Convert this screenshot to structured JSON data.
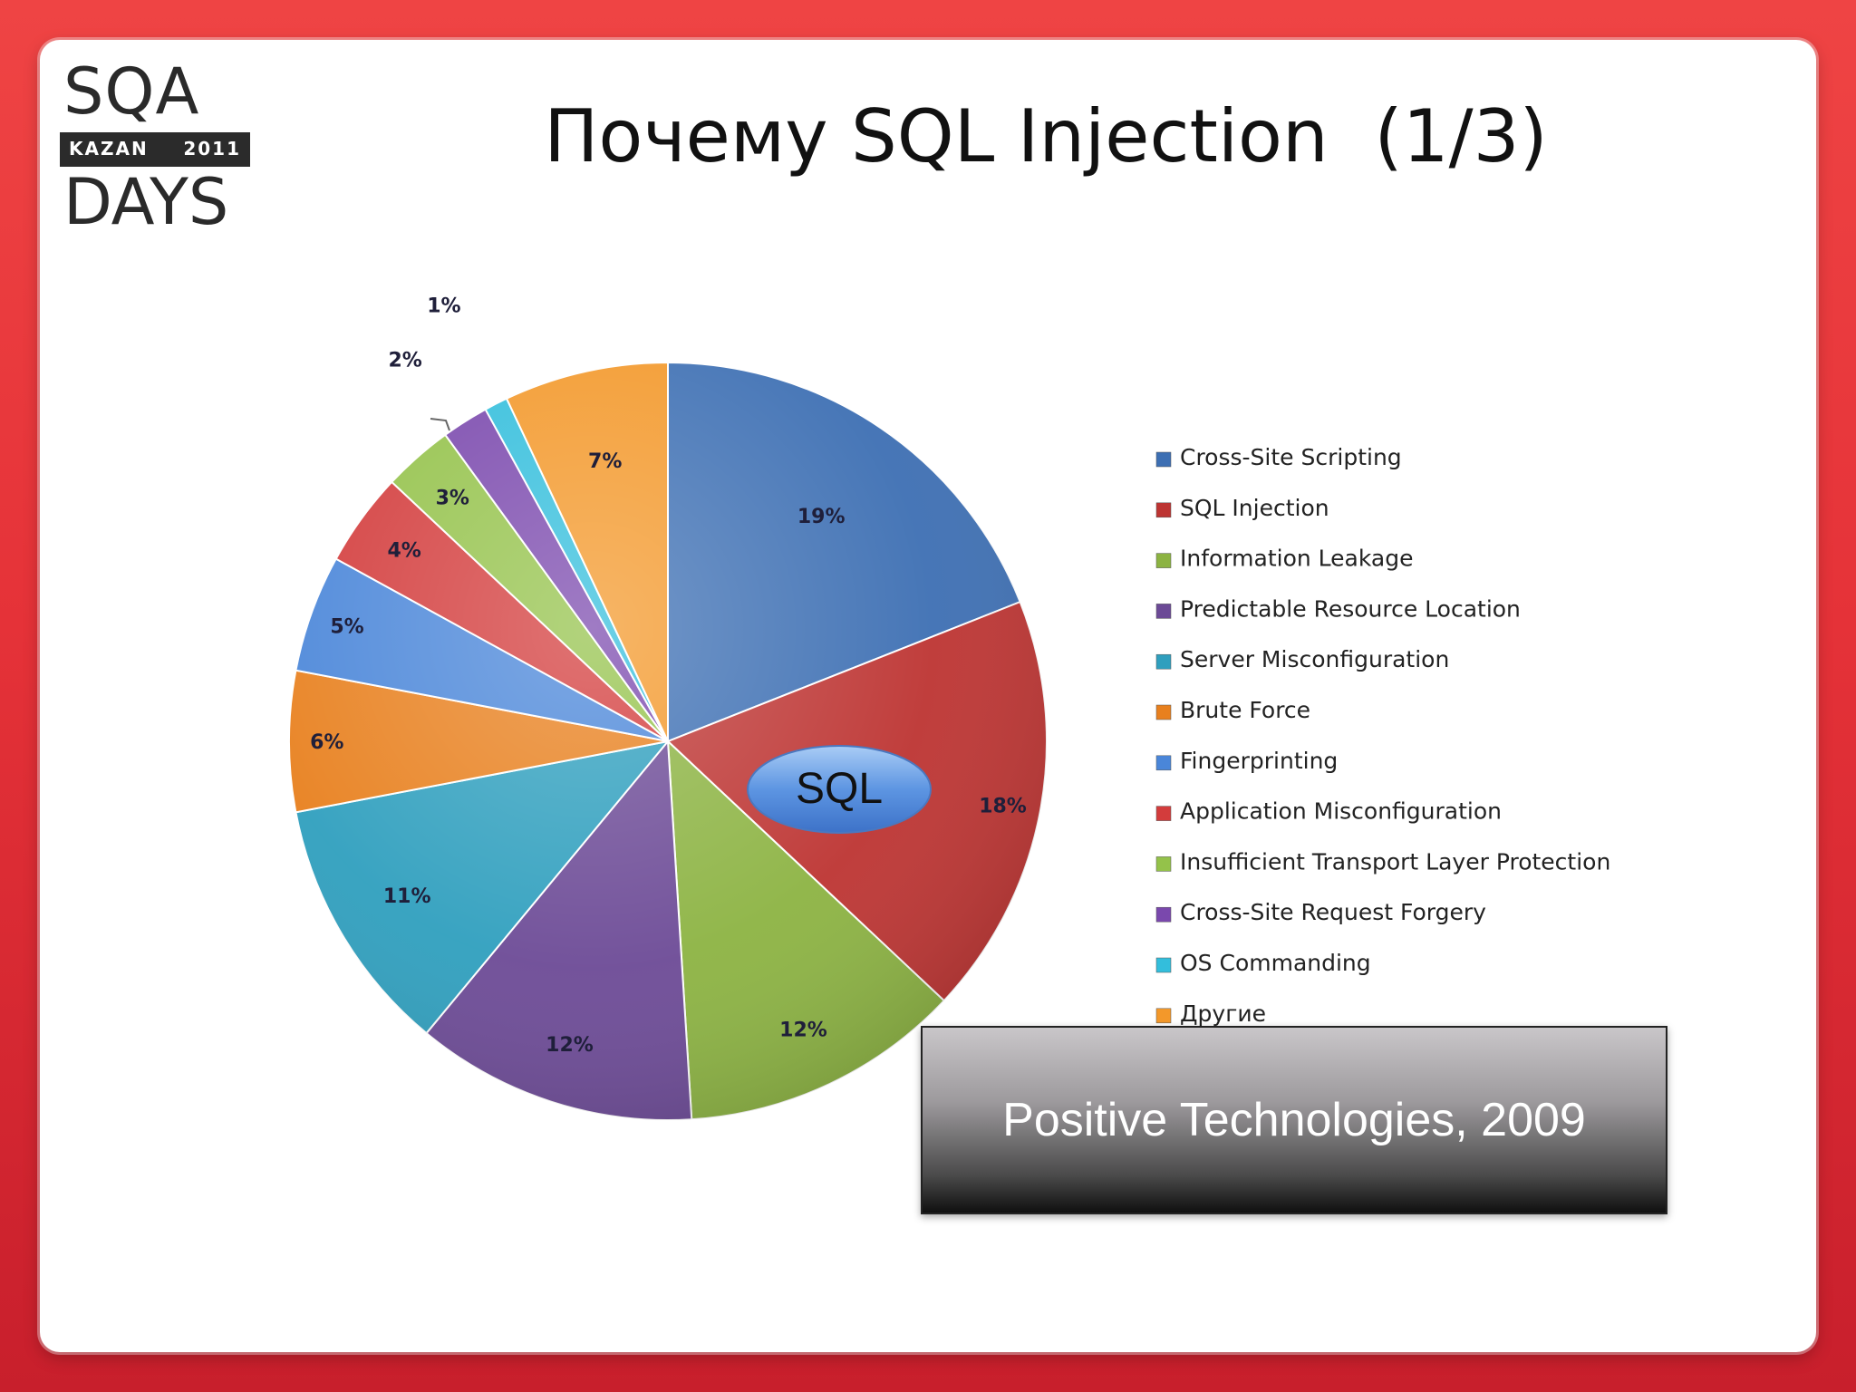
{
  "logo": {
    "top": "SQA",
    "city": "KAZAN",
    "year": "2011",
    "bottom": "DAYS"
  },
  "title": "Почему SQL Injection  (1/3)",
  "source_box": "Positive Technologies, 2009",
  "callout": "SQL",
  "chart_data": {
    "type": "pie",
    "title": "",
    "legend_position": "right",
    "slices": [
      {
        "name": "Cross-Site Scripting",
        "value": 19,
        "label": "19%",
        "color": "#3d6fb3"
      },
      {
        "name": "SQL Injection",
        "value": 18,
        "label": "18%",
        "color": "#bd3432"
      },
      {
        "name": "Information Leakage",
        "value": 12,
        "label": "12%",
        "color": "#8cb342"
      },
      {
        "name": "Predictable Resource Location",
        "value": 12,
        "label": "12%",
        "color": "#6c4a96"
      },
      {
        "name": "Server Misconfiguration",
        "value": 11,
        "label": "11%",
        "color": "#2f9fbe"
      },
      {
        "name": "Brute Force",
        "value": 6,
        "label": "6%",
        "color": "#e8801e"
      },
      {
        "name": "Fingerprinting",
        "value": 5,
        "label": "5%",
        "color": "#4a86d9"
      },
      {
        "name": "Application Misconfiguration",
        "value": 4,
        "label": "4%",
        "color": "#d33c3c"
      },
      {
        "name": "Insufficient Transport Layer Protection",
        "value": 3,
        "label": "3%",
        "color": "#94c24a"
      },
      {
        "name": "Cross-Site Request Forgery",
        "value": 2,
        "label": "2%",
        "color": "#7a48ad"
      },
      {
        "name": "OS Commanding",
        "value": 1,
        "label": "1%",
        "color": "#33bedc"
      },
      {
        "name": "Другие",
        "value": 7,
        "label": "7%",
        "color": "#f3982a"
      }
    ]
  }
}
